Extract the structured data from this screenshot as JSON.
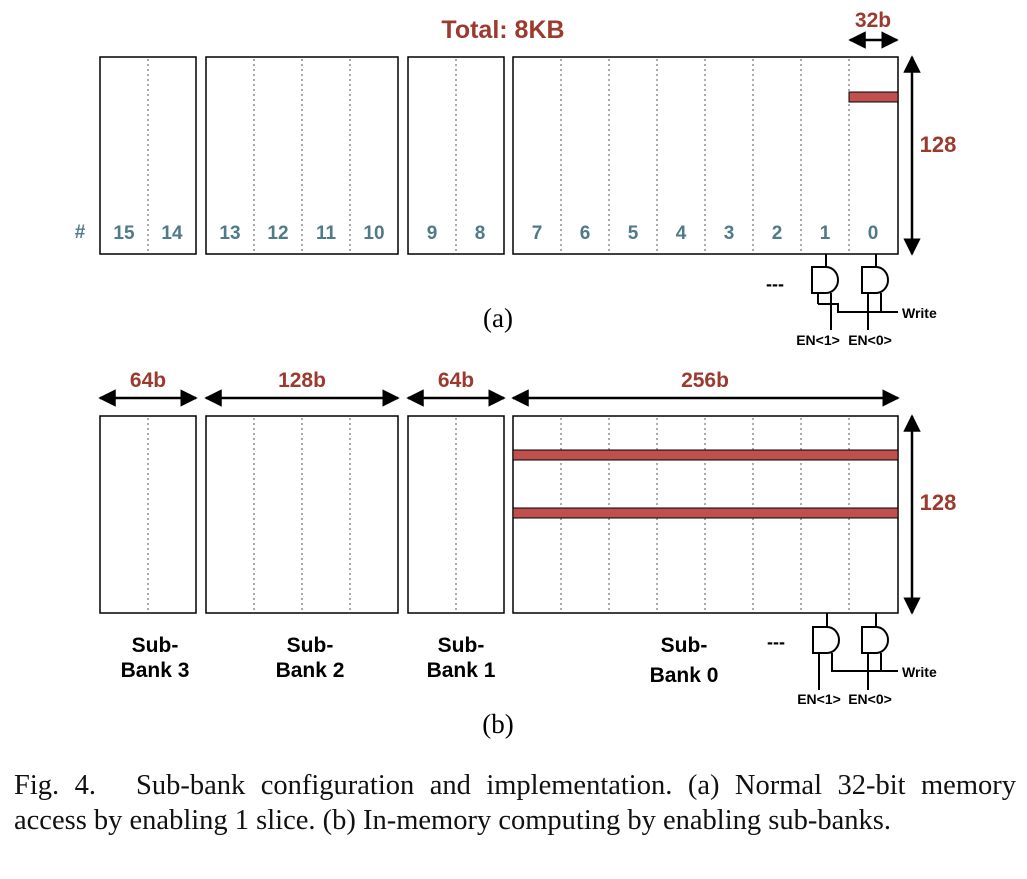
{
  "colors": {
    "accent": "#9b3a2e",
    "slice_fill": "#c0504d",
    "number": "#4f7a8a",
    "ink": "#000000"
  },
  "panel_a": {
    "title": "Total: 8KB",
    "width_label": "32b",
    "height_label": "128",
    "row_marker": "#",
    "slice_numbers": [
      "15",
      "14",
      "13",
      "12",
      "11",
      "10",
      "9",
      "8",
      "7",
      "6",
      "5",
      "4",
      "3",
      "2",
      "1",
      "0"
    ],
    "ellipsis": "---",
    "write_label": "Write",
    "en_labels": [
      "EN<1>",
      "EN<0>"
    ],
    "label": "(a)"
  },
  "panel_b": {
    "width_labels": [
      "64b",
      "128b",
      "64b",
      "256b"
    ],
    "height_label": "128",
    "subbank_labels": [
      {
        "line1": "Sub-",
        "line2": "Bank 3"
      },
      {
        "line1": "Sub-",
        "line2": "Bank 2"
      },
      {
        "line1": "Sub-",
        "line2": "Bank 1"
      },
      {
        "line1": "Sub-",
        "line2": "Bank 0"
      }
    ],
    "ellipsis": "---",
    "write_label": "Write",
    "en_labels": [
      "EN<1>",
      "EN<0>"
    ],
    "label": "(b)"
  },
  "caption": {
    "prefix": "Fig. 4.",
    "text": "Sub-bank configuration and implementation. (a) Normal 32-bit memory access by enabling 1 slice. (b) In-memory computing by enabling sub-banks."
  }
}
